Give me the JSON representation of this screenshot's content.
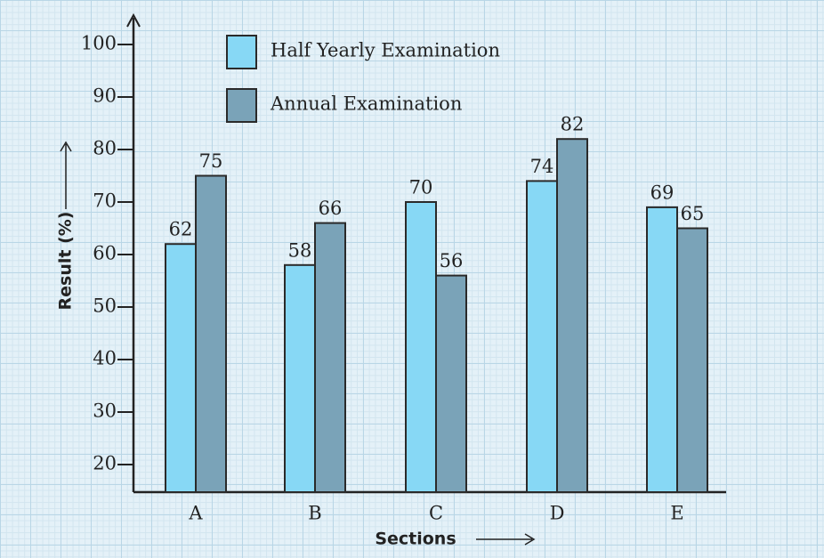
{
  "chart_data": {
    "type": "bar",
    "categories": [
      "A",
      "B",
      "C",
      "D",
      "E"
    ],
    "series": [
      {
        "name": "Half Yearly Examination",
        "color": "#87d8f5",
        "values": [
          62,
          58,
          70,
          74,
          69
        ]
      },
      {
        "name": "Annual Examination",
        "color": "#7aa3b8",
        "values": [
          75,
          66,
          56,
          82,
          65
        ]
      }
    ],
    "ylim": [
      15,
      105
    ],
    "yticks": [
      20,
      30,
      40,
      50,
      60,
      70,
      80,
      90,
      100
    ],
    "y_label": "Result (%)",
    "x_label": "Sections"
  }
}
